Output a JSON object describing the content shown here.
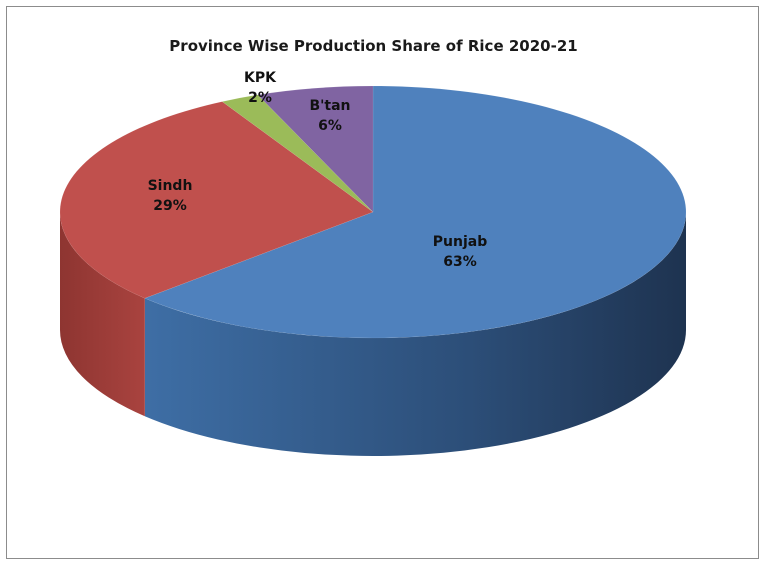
{
  "chart_data": {
    "type": "pie",
    "title": "Province Wise Production Share of Rice 2020-21",
    "slices": [
      {
        "label": "Punjab",
        "value": 63,
        "display": "63%",
        "color": "#4f81bd"
      },
      {
        "label": "Sindh",
        "value": 29,
        "display": "29%",
        "color": "#c0504d"
      },
      {
        "label": "KPK",
        "value": 2,
        "display": "2%",
        "color": "#9bbb59"
      },
      {
        "label": "B'tan",
        "value": 6,
        "display": "6%",
        "color": "#8064a2"
      }
    ],
    "legend": "none",
    "style": "3d"
  }
}
